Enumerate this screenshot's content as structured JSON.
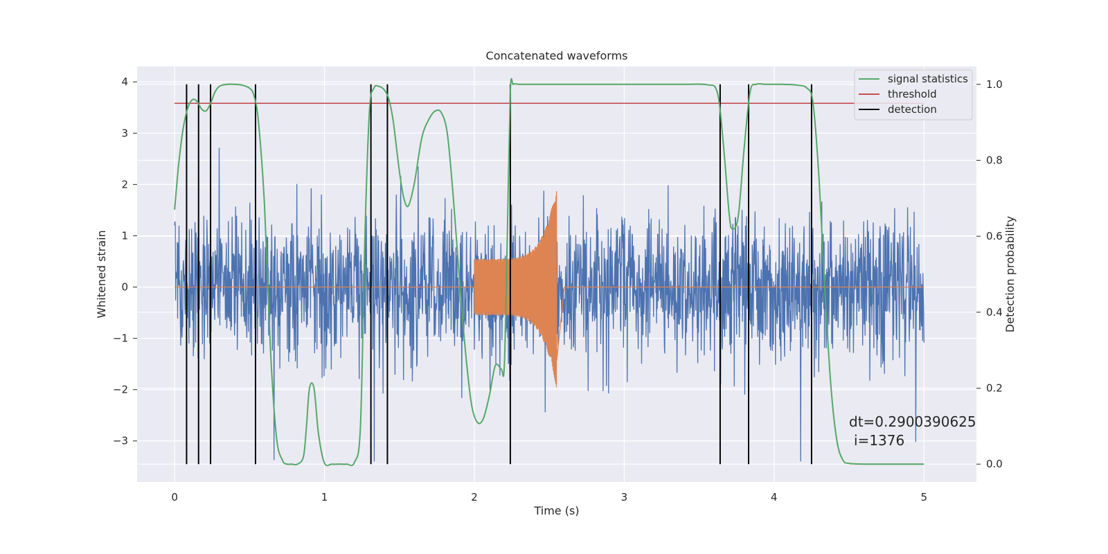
{
  "chart_data": {
    "type": "line",
    "title": "Concatenated waveforms",
    "xlabel": "Time (s)",
    "ylabel": "Whitened strain",
    "y2label": "Detection probability",
    "xlim": [
      -0.25,
      5.35
    ],
    "ylim": [
      -3.8,
      4.3
    ],
    "y2lim": [
      -0.047,
      1.047
    ],
    "x_ticks": [
      0,
      1,
      2,
      3,
      4,
      5
    ],
    "x_tick_labels": [
      "0",
      "1",
      "2",
      "3",
      "4",
      "5"
    ],
    "y_ticks": [
      4,
      3,
      2,
      1,
      0,
      -1,
      -2,
      -3
    ],
    "y_tick_labels": [
      "4",
      "3",
      "2",
      "1",
      "0",
      "−1",
      "−2",
      "−3"
    ],
    "y2_ticks": [
      1.0,
      0.8,
      0.6,
      0.4,
      0.2,
      0.0
    ],
    "y2_tick_labels": [
      "1.0",
      "0.8",
      "0.6",
      "0.4",
      "0.2",
      "0.0"
    ],
    "grid": true,
    "legend_position": "top-right",
    "colors": {
      "strain": "#4c72b0",
      "injection": "#dd8452",
      "statistics": "#55a868",
      "threshold": "#c44e52",
      "detection": "#000000",
      "background": "#eaeaf2",
      "grid": "#ffffff"
    },
    "series": [
      {
        "name": "strain",
        "axis": "left",
        "description_free": true,
        "x_range": [
          0,
          5
        ],
        "amplitude_envelope": 2.6
      },
      {
        "name": "injection",
        "axis": "left",
        "x_range": [
          2.0,
          2.55
        ],
        "start_amplitude": 0.55,
        "peak_amplitude": 2.0
      },
      {
        "name": "signal statistics",
        "axis": "right",
        "x": [
          0.0,
          0.03,
          0.06,
          0.09,
          0.12,
          0.15,
          0.18,
          0.21,
          0.24,
          0.27,
          0.3,
          0.35,
          0.4,
          0.45,
          0.5,
          0.53,
          0.56,
          0.6,
          0.64,
          0.68,
          0.72,
          0.75,
          0.78,
          0.82,
          0.86,
          0.88,
          0.9,
          0.93,
          0.96,
          1.0,
          1.05,
          1.1,
          1.15,
          1.2,
          1.24,
          1.27,
          1.3,
          1.33,
          1.36,
          1.4,
          1.43,
          1.46,
          1.5,
          1.53,
          1.56,
          1.6,
          1.65,
          1.7,
          1.74,
          1.78,
          1.82,
          1.86,
          1.9,
          1.94,
          1.98,
          2.02,
          2.06,
          2.1,
          2.14,
          2.18,
          2.2,
          2.22,
          2.24,
          2.26,
          2.3,
          2.4,
          2.6,
          2.8,
          3.0,
          3.2,
          3.4,
          3.55,
          3.62,
          3.66,
          3.7,
          3.72,
          3.76,
          3.8,
          3.84,
          3.88,
          3.95,
          4.05,
          4.15,
          4.22,
          4.26,
          4.3,
          4.34,
          4.38,
          4.42,
          4.46,
          4.5,
          4.6,
          4.8,
          5.0
        ],
        "values": [
          0.67,
          0.8,
          0.89,
          0.94,
          0.96,
          0.955,
          0.935,
          0.93,
          0.95,
          0.98,
          0.995,
          1.0,
          1.0,
          0.998,
          0.99,
          0.97,
          0.9,
          0.68,
          0.3,
          0.07,
          0.01,
          0.0,
          0.0,
          0.0,
          0.02,
          0.1,
          0.2,
          0.2,
          0.08,
          0.003,
          0.0,
          0.0,
          0.0,
          0.005,
          0.1,
          0.6,
          0.93,
          0.99,
          0.995,
          0.985,
          0.96,
          0.9,
          0.77,
          0.7,
          0.68,
          0.74,
          0.86,
          0.91,
          0.93,
          0.925,
          0.87,
          0.7,
          0.49,
          0.3,
          0.16,
          0.11,
          0.12,
          0.18,
          0.26,
          0.25,
          0.26,
          0.6,
          0.98,
          1.0,
          1.0,
          1.0,
          1.0,
          1.0,
          1.0,
          1.0,
          1.0,
          0.999,
          0.98,
          0.85,
          0.66,
          0.62,
          0.65,
          0.83,
          0.98,
          1.0,
          1.0,
          1.0,
          0.998,
          0.99,
          0.95,
          0.75,
          0.45,
          0.2,
          0.06,
          0.01,
          0.002,
          0.0,
          0.0,
          0.0
        ]
      },
      {
        "name": "threshold",
        "axis": "right",
        "value": 0.95
      },
      {
        "name": "detection",
        "axis": "left",
        "x": [
          0.08,
          0.16,
          0.24,
          0.54,
          1.31,
          1.42,
          2.24,
          3.64,
          3.83,
          4.25
        ]
      }
    ],
    "legend": [
      "signal statistics",
      "threshold",
      "detection"
    ],
    "annotation_dt": "dt=0.2900390625",
    "annotation_i": "i=1376"
  }
}
